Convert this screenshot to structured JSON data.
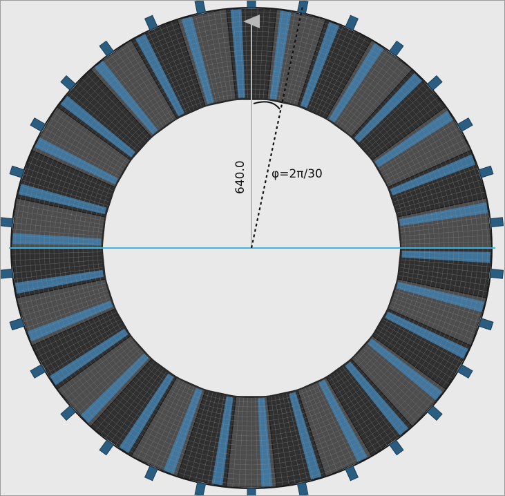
{
  "figure": {
    "radius_label": "640.0",
    "angle_label": "φ=2π/30",
    "segment_count": 30
  },
  "colors": {
    "background": "#e9e9e9",
    "segment_dark": "#2f2f2f",
    "segment_light": "#4d4d4d",
    "mesh_line": "#8a8a8a",
    "blue_band": "#3f7fae",
    "tab_color": "#2b5d80",
    "axis_line": "#3cb4e0",
    "radius_arrow": "#b8b8b8"
  }
}
